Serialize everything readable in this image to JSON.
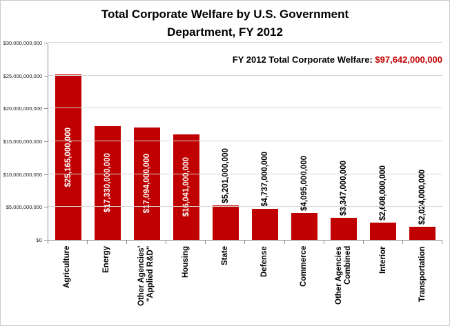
{
  "title": {
    "line1": "Total Corporate Welfare by U.S. Government",
    "line2": "Department, FY 2012"
  },
  "annotation": {
    "label": "FY 2012 Total Corporate Welfare: ",
    "value": "$97,642,000,000"
  },
  "colors": {
    "bar": "#C00000",
    "annotation_value": "#C00000"
  },
  "chart_data": {
    "type": "bar",
    "title": "Total Corporate Welfare by U.S. Government Department, FY 2012",
    "categories": [
      "Agriculture",
      "Energy",
      "Other Agencies'\n\"Applied R&D\"",
      "Housing",
      "State",
      "Defense",
      "Commerce",
      "Other Agencies\nCombined",
      "Interior",
      "Transportation"
    ],
    "values": [
      25165000000,
      17330000000,
      17094000000,
      16041000000,
      5201000000,
      4737000000,
      4095000000,
      3347000000,
      2608000000,
      2024000000
    ],
    "value_labels": [
      "$25,165,000,000",
      "$17,330,000,000",
      "$17,094,000,000",
      "$16,041,000,000",
      "$5,201,000,000",
      "$4,737,000,000",
      "$4,095,000,000",
      "$3,347,000,000",
      "$2,608,000,000",
      "$2,024,000,000"
    ],
    "xlabel": "",
    "ylabel": "",
    "ylim": [
      0,
      30000000000
    ],
    "ytick_labels": [
      "$0",
      "$5,000,000,000",
      "$10,000,000,000",
      "$15,000,000,000",
      "$20,000,000,000",
      "$25,000,000,000",
      "$30,000,000,000"
    ],
    "grid": true,
    "legend": false,
    "bar_color": "#C00000",
    "total": 97642000000
  }
}
